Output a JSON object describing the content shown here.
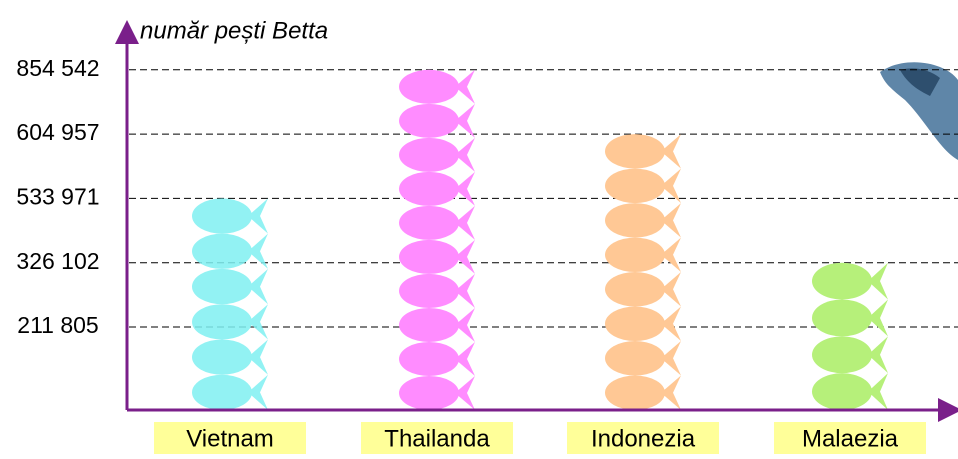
{
  "chart_data": {
    "type": "pictograph",
    "y_label": "număr pești Betta",
    "categories": [
      "Vietnam",
      "Thailanda",
      "Indonezia",
      "Malaezia"
    ],
    "values": [
      533971,
      854542,
      604957,
      326102
    ],
    "colors": [
      "#7ff0f2",
      "#ff8cff",
      "#ffc895",
      "#b6f07a"
    ],
    "yticks": [
      {
        "value": 211805,
        "label": "211 805"
      },
      {
        "value": 326102,
        "label": "326 102"
      },
      {
        "value": 533971,
        "label": "533 971"
      },
      {
        "value": 604957,
        "label": "604 957"
      },
      {
        "value": 854542,
        "label": "854 542"
      }
    ],
    "grid": true
  }
}
